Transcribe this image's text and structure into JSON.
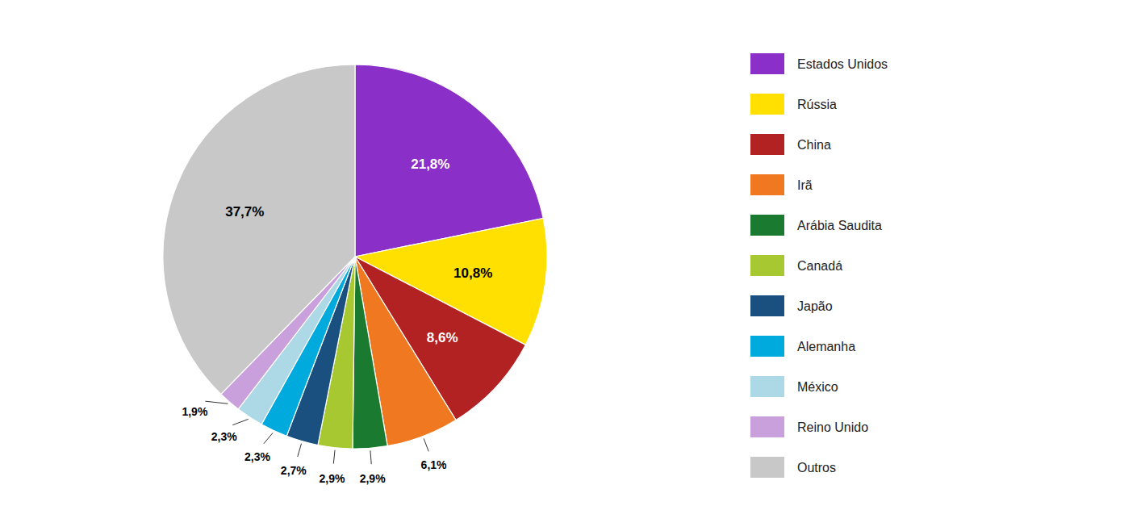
{
  "chart_data": {
    "type": "pie",
    "categories": [
      "Estados Unidos",
      "Rússia",
      "China",
      "Irã",
      "Arábia Saudita",
      "Canadá",
      "Japão",
      "Alemanha",
      "México",
      "Reino Unido",
      "Outros"
    ],
    "values": [
      21.8,
      10.8,
      8.6,
      6.1,
      2.9,
      2.9,
      2.7,
      2.3,
      2.3,
      1.9,
      37.7
    ],
    "value_labels": [
      "21,8%",
      "10,8%",
      "8,6%",
      "6,1%",
      "2,9%",
      "2,9%",
      "2,7%",
      "2,3%",
      "2,3%",
      "1,9%",
      "37,7%"
    ],
    "colors": [
      "#8B2FC9",
      "#FFE000",
      "#B22222",
      "#F07820",
      "#1A7A30",
      "#A8C832",
      "#1A5080",
      "#00AADD",
      "#ADD8E6",
      "#C9A0DC",
      "#C8C8C8"
    ],
    "data_labels": true,
    "legend": "right"
  }
}
